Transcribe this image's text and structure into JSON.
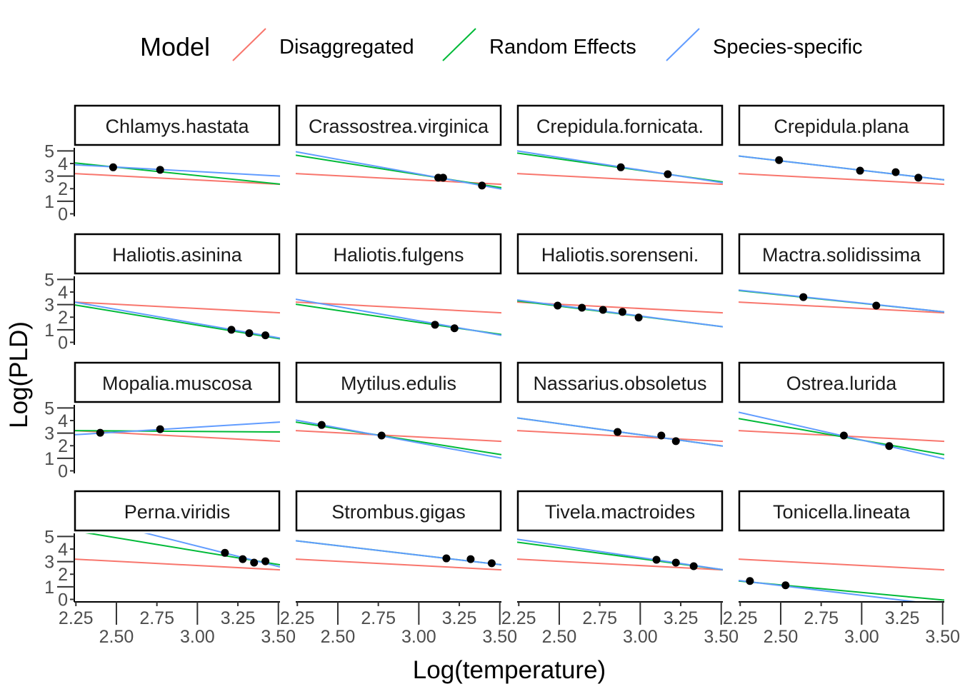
{
  "chart_data": {
    "type": "line",
    "xlabel": "Log(temperature)",
    "ylabel": "Log(PLD)",
    "xlim": [
      2.24,
      3.51
    ],
    "ylim": [
      -0.2,
      5.25
    ],
    "xticks": [
      "2.25",
      "2.50",
      "2.75",
      "3.00",
      "3.25",
      "3.50"
    ],
    "yticks": [
      "0",
      "1",
      "2",
      "3",
      "4",
      "5"
    ],
    "legend": {
      "title": "Model",
      "position": "top",
      "entries": [
        {
          "name": "Disaggregated",
          "color": "#F8766D"
        },
        {
          "name": "Random Effects",
          "color": "#00BA38"
        },
        {
          "name": "Species-specific",
          "color": "#619CFF"
        }
      ]
    },
    "line_x": [
      2.24,
      3.51
    ],
    "facets": [
      {
        "title": "Chlamys.hastata",
        "points": [
          [
            2.48,
            3.7
          ],
          [
            2.77,
            3.5
          ]
        ],
        "lines": {
          "Disaggregated": [
            3.2,
            2.35
          ],
          "Random Effects": [
            4.05,
            2.36
          ],
          "Species-specific": [
            3.9,
            3.0
          ]
        }
      },
      {
        "title": "Crassostrea.virginica",
        "points": [
          [
            3.12,
            2.87
          ],
          [
            3.15,
            2.87
          ],
          [
            3.39,
            2.25
          ]
        ],
        "lines": {
          "Disaggregated": [
            3.2,
            2.35
          ],
          "Random Effects": [
            4.66,
            2.08
          ],
          "Species-specific": [
            4.94,
            1.97
          ]
        }
      },
      {
        "title": "Crepidula.fornicata.",
        "points": [
          [
            2.88,
            3.7
          ],
          [
            3.17,
            3.15
          ]
        ],
        "lines": {
          "Disaggregated": [
            3.2,
            2.35
          ],
          "Random Effects": [
            4.83,
            2.53
          ],
          "Species-specific": [
            5.0,
            2.47
          ]
        }
      },
      {
        "title": "Crepidula.plana",
        "points": [
          [
            2.49,
            4.27
          ],
          [
            2.99,
            3.43
          ],
          [
            3.21,
            3.31
          ],
          [
            3.35,
            2.87
          ]
        ],
        "lines": {
          "Disaggregated": [
            3.2,
            2.35
          ],
          "Random Effects": [
            4.6,
            2.7
          ],
          "Species-specific": [
            4.6,
            2.7
          ]
        }
      },
      {
        "title": "Haliotis.asinina",
        "points": [
          [
            3.21,
            1.0
          ],
          [
            3.32,
            0.73
          ],
          [
            3.42,
            0.56
          ]
        ],
        "lines": {
          "Disaggregated": [
            3.2,
            2.35
          ],
          "Random Effects": [
            2.98,
            0.28
          ],
          "Species-specific": [
            3.2,
            0.34
          ]
        }
      },
      {
        "title": "Haliotis.fulgens",
        "points": [
          [
            3.1,
            1.4
          ],
          [
            3.22,
            1.12
          ]
        ],
        "lines": {
          "Disaggregated": [
            3.2,
            2.35
          ],
          "Random Effects": [
            3.03,
            0.62
          ],
          "Species-specific": [
            3.43,
            0.56
          ]
        }
      },
      {
        "title": "Haliotis.sorenseni.",
        "points": [
          [
            2.49,
            2.92
          ],
          [
            2.64,
            2.75
          ],
          [
            2.77,
            2.58
          ],
          [
            2.89,
            2.42
          ],
          [
            2.99,
            1.97
          ]
        ],
        "lines": {
          "Disaggregated": [
            3.2,
            2.35
          ],
          "Random Effects": [
            3.3,
            1.24
          ],
          "Species-specific": [
            3.37,
            1.24
          ]
        }
      },
      {
        "title": "Mactra.solidissima",
        "points": [
          [
            2.64,
            3.6
          ],
          [
            3.09,
            2.92
          ]
        ],
        "lines": {
          "Disaggregated": [
            3.2,
            2.35
          ],
          "Random Effects": [
            4.12,
            2.42
          ],
          "Species-specific": [
            4.16,
            2.42
          ]
        }
      },
      {
        "title": "Mopalia.muscosa",
        "points": [
          [
            2.4,
            3.03
          ],
          [
            2.77,
            3.31
          ]
        ],
        "lines": {
          "Disaggregated": [
            3.2,
            2.35
          ],
          "Random Effects": [
            3.2,
            3.09
          ],
          "Species-specific": [
            2.87,
            3.88
          ]
        }
      },
      {
        "title": "Mytilus.edulis",
        "points": [
          [
            2.4,
            3.65
          ],
          [
            2.77,
            2.81
          ]
        ],
        "lines": {
          "Disaggregated": [
            3.2,
            2.35
          ],
          "Random Effects": [
            3.88,
            1.29
          ],
          "Species-specific": [
            4.04,
            1.01
          ]
        }
      },
      {
        "title": "Nassarius.obsoletus",
        "points": [
          [
            2.86,
            3.09
          ],
          [
            3.13,
            2.81
          ],
          [
            3.22,
            2.36
          ]
        ],
        "lines": {
          "Disaggregated": [
            3.2,
            2.35
          ],
          "Random Effects": [
            4.21,
            1.97
          ],
          "Species-specific": [
            4.21,
            1.97
          ]
        }
      },
      {
        "title": "Ostrea.lurida",
        "points": [
          [
            2.89,
            2.81
          ],
          [
            3.17,
            1.97
          ]
        ],
        "lines": {
          "Disaggregated": [
            3.2,
            2.35
          ],
          "Random Effects": [
            4.16,
            1.29
          ],
          "Species-specific": [
            4.66,
            0.96
          ]
        }
      },
      {
        "title": "Perna.viridis",
        "points": [
          [
            3.17,
            3.7
          ],
          [
            3.28,
            3.2
          ],
          [
            3.35,
            2.92
          ],
          [
            3.42,
            3.03
          ]
        ],
        "lines": {
          "Disaggregated": [
            3.2,
            2.35
          ],
          "Random Effects": [
            5.45,
            2.75
          ],
          "Species-specific": [
            6.7,
            2.58
          ]
        }
      },
      {
        "title": "Strombus.gigas",
        "points": [
          [
            3.17,
            3.26
          ],
          [
            3.32,
            3.2
          ],
          [
            3.45,
            2.87
          ]
        ],
        "lines": {
          "Disaggregated": [
            3.2,
            2.35
          ],
          "Random Effects": [
            4.66,
            2.75
          ],
          "Species-specific": [
            4.66,
            2.75
          ]
        }
      },
      {
        "title": "Tivela.mactroides",
        "points": [
          [
            3.1,
            3.15
          ],
          [
            3.22,
            2.92
          ],
          [
            3.33,
            2.64
          ]
        ],
        "lines": {
          "Disaggregated": [
            3.2,
            2.35
          ],
          "Random Effects": [
            4.55,
            2.36
          ],
          "Species-specific": [
            4.78,
            2.36
          ]
        }
      },
      {
        "title": "Tonicella.lineata",
        "points": [
          [
            2.31,
            1.46
          ],
          [
            2.53,
            1.12
          ]
        ],
        "lines": {
          "Disaggregated": [
            3.2,
            2.35
          ],
          "Random Effects": [
            1.46,
            -0.06
          ],
          "Species-specific": [
            1.5,
            -0.47
          ]
        }
      }
    ]
  }
}
